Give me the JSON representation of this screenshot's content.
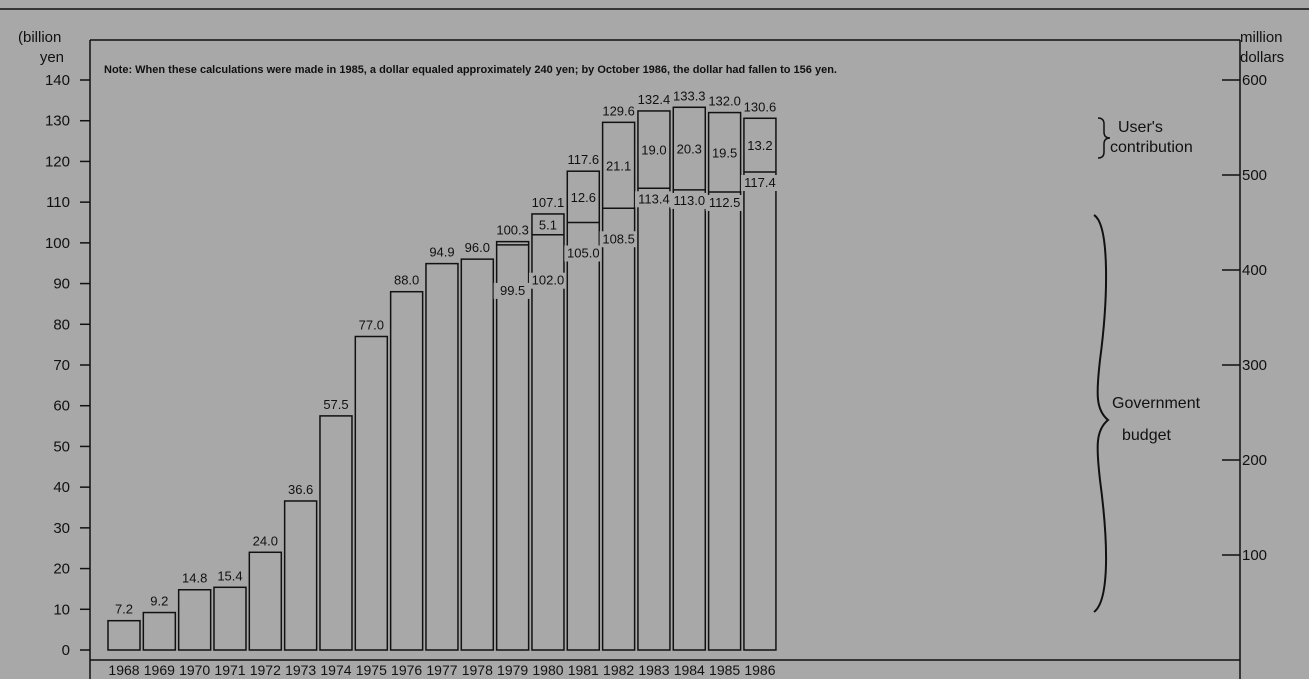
{
  "chart_data": {
    "type": "bar",
    "note": "Note: When these calculations were made in 1985, a dollar equaled approximately 240 yen; by October 1986, the dollar had fallen to 156 yen.",
    "left_axis_label": [
      "(billion",
      "yen"
    ],
    "right_axis_label": [
      "million",
      "dollars"
    ],
    "ylim": [
      0,
      140
    ],
    "y_ticks": [
      0,
      10,
      20,
      30,
      40,
      50,
      60,
      70,
      80,
      90,
      100,
      110,
      120,
      130,
      140
    ],
    "right_ylim_millions": [
      0,
      600
    ],
    "right_ticks": [
      100,
      200,
      300,
      400,
      500,
      600
    ],
    "categories": [
      "1968",
      "1969",
      "1970",
      "1971",
      "1972",
      "1973",
      "1974",
      "1975",
      "1976",
      "1977",
      "1978",
      "1979",
      "1980",
      "1981",
      "1982",
      "1983",
      "1984",
      "1985",
      "1986"
    ],
    "totals": [
      7.2,
      9.2,
      14.8,
      15.4,
      24.0,
      36.6,
      57.5,
      77.0,
      88.0,
      94.9,
      96.0,
      100.3,
      107.1,
      117.6,
      129.6,
      132.4,
      133.3,
      132.0,
      130.6
    ],
    "government_budget": [
      7.2,
      9.2,
      14.8,
      15.4,
      24.0,
      36.6,
      57.5,
      77.0,
      88.0,
      94.9,
      96.0,
      99.5,
      102.0,
      105.0,
      108.5,
      113.4,
      113.0,
      112.5,
      117.4
    ],
    "users_contribution": [
      0,
      0,
      0,
      0,
      0,
      0,
      0,
      0,
      0,
      0,
      0,
      0.8,
      5.1,
      12.6,
      21.1,
      19.0,
      20.3,
      19.5,
      13.2
    ],
    "total_labels": [
      "7.2",
      "9.2",
      "14.8",
      "15.4",
      "24.0",
      "36.6",
      "57.5",
      "77.0",
      "88.0",
      "94.9",
      "96.0",
      "100.3",
      "107.1",
      "117.6",
      "129.6",
      "132.4",
      "133.3",
      "132.0",
      "130.6"
    ],
    "government_labels": [
      null,
      null,
      null,
      null,
      null,
      null,
      null,
      null,
      null,
      null,
      null,
      "99.5",
      "102.0",
      "105.0",
      "108.5",
      "113.4",
      "113.0",
      "112.5",
      "117.4"
    ],
    "user_labels": [
      null,
      null,
      null,
      null,
      null,
      null,
      null,
      null,
      null,
      null,
      null,
      null,
      "5.1",
      "12.6",
      "21.1",
      "19.0",
      "20.3",
      "19.5",
      "13.2"
    ],
    "legend": {
      "users_contribution": [
        "User's",
        "contribution"
      ],
      "government_budget": [
        "Government",
        "budget"
      ]
    },
    "grid": false,
    "colors": {
      "background": "#a8a8a8",
      "bar_fill": "#a8a8a8",
      "ink": "#111111"
    }
  }
}
